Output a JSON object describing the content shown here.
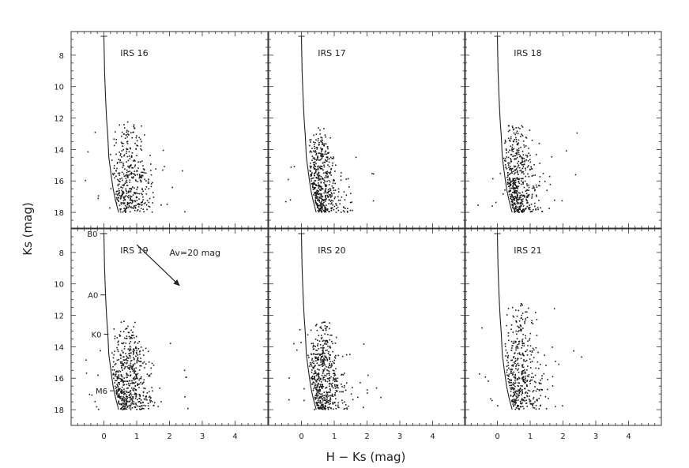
{
  "chart_data": {
    "type": "scatter",
    "layout": "2x3 panels, shared axes",
    "xlabel": "H − Ks (mag)",
    "ylabel": "Ks (mag)",
    "xlim": [
      -1,
      5
    ],
    "ylim": [
      19,
      6.5
    ],
    "y_inverted": true,
    "x_ticks": [
      0,
      1,
      2,
      3,
      4
    ],
    "y_ticks": [
      8,
      10,
      12,
      14,
      16,
      18
    ],
    "grid": false,
    "legend": "none",
    "isochrone": {
      "x": [
        0.0,
        0.02,
        0.05,
        0.08,
        0.12,
        0.15,
        0.22,
        0.28,
        0.35,
        0.45
      ],
      "y": [
        6.8,
        9.0,
        10.7,
        12.0,
        13.2,
        14.5,
        15.6,
        16.5,
        17.2,
        18.0
      ]
    },
    "spectral_types": [
      {
        "label": "B0",
        "x": 0.0,
        "y": 6.8
      },
      {
        "label": "A0",
        "x": 0.02,
        "y": 10.7
      },
      {
        "label": "K0",
        "x": 0.12,
        "y": 13.2
      },
      {
        "label": "M6",
        "x": 0.3,
        "y": 16.8
      }
    ],
    "reddening_vector": {
      "label": "Av=20 mag",
      "x0": 1.0,
      "y0": 7.5,
      "x1": 2.3,
      "y1": 10.1
    },
    "panels": [
      {
        "label": "IRS 16",
        "n_points": 420,
        "center_x": 0.75,
        "spread_x": 0.45,
        "ymin": 12.0,
        "ymax": 18.0
      },
      {
        "label": "IRS 17",
        "n_points": 520,
        "center_x": 0.55,
        "spread_x": 0.4,
        "ymin": 12.5,
        "ymax": 18.0
      },
      {
        "label": "IRS 18",
        "n_points": 520,
        "center_x": 0.55,
        "spread_x": 0.42,
        "ymin": 12.2,
        "ymax": 18.0
      },
      {
        "label": "IRS 19",
        "n_points": 560,
        "center_x": 0.75,
        "spread_x": 0.45,
        "ymin": 12.2,
        "ymax": 18.0
      },
      {
        "label": "IRS 20",
        "n_points": 560,
        "center_x": 0.65,
        "spread_x": 0.38,
        "ymin": 12.2,
        "ymax": 18.0
      },
      {
        "label": "IRS 21",
        "n_points": 460,
        "center_x": 0.7,
        "spread_x": 0.4,
        "ymin": 11.0,
        "ymax": 18.0
      }
    ]
  }
}
